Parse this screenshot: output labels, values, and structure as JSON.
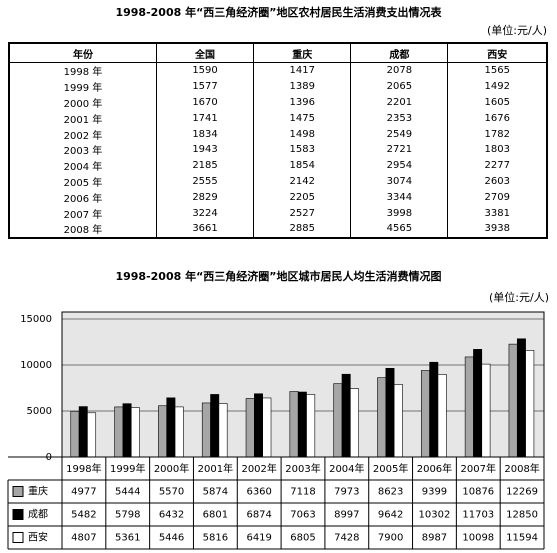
{
  "table_title": "1998-2008 年“西三角经济圈”地区农村居民生活消费支出情况表",
  "table_unit": "(单位:元/人)",
  "table": {
    "header": [
      "年份",
      "全国",
      "重庆",
      "成都",
      "西安"
    ],
    "rows": [
      [
        "1998 年",
        1590,
        1417,
        2078,
        1565
      ],
      [
        "1999 年",
        1577,
        1389,
        2065,
        1492
      ],
      [
        "2000 年",
        1670,
        1396,
        2201,
        1605
      ],
      [
        "2001 年",
        1741,
        1475,
        2353,
        1676
      ],
      [
        "2002 年",
        1834,
        1498,
        2549,
        1782
      ],
      [
        "2003 年",
        1943,
        1583,
        2721,
        1803
      ],
      [
        "2004 年",
        2185,
        1854,
        2954,
        2277
      ],
      [
        "2005 年",
        2555,
        2142,
        3074,
        2603
      ],
      [
        "2006 年",
        2829,
        2205,
        3344,
        2709
      ],
      [
        "2007 年",
        3224,
        2527,
        3998,
        3381
      ],
      [
        "2008 年",
        3661,
        2885,
        4565,
        3938
      ]
    ]
  },
  "chart_data": {
    "type": "bar",
    "title": "1998-2008 年“西三角经济圈”地区城市居民人均生活消费情况图",
    "unit": "(单位:元/人)",
    "categories": [
      "1998年",
      "1999年",
      "2000年",
      "2001年",
      "2002年",
      "2003年",
      "2004年",
      "2005年",
      "2006年",
      "2007年",
      "2008年"
    ],
    "series": [
      {
        "name": "重庆",
        "color": "#a6a6a6",
        "values": [
          4977,
          5444,
          5570,
          5874,
          6360,
          7118,
          7973,
          8623,
          9399,
          10876,
          12269
        ]
      },
      {
        "name": "成都",
        "color": "#000000",
        "values": [
          5482,
          5798,
          6432,
          6801,
          6874,
          7063,
          8997,
          9642,
          10302,
          11703,
          12850
        ]
      },
      {
        "name": "西安",
        "color": "#ffffff",
        "values": [
          4807,
          5361,
          5446,
          5816,
          6419,
          6805,
          7428,
          7900,
          8987,
          10098,
          11594
        ]
      }
    ],
    "ylim": [
      0,
      15000
    ],
    "yticks": [
      0,
      5000,
      10000,
      15000
    ],
    "grid": true
  }
}
